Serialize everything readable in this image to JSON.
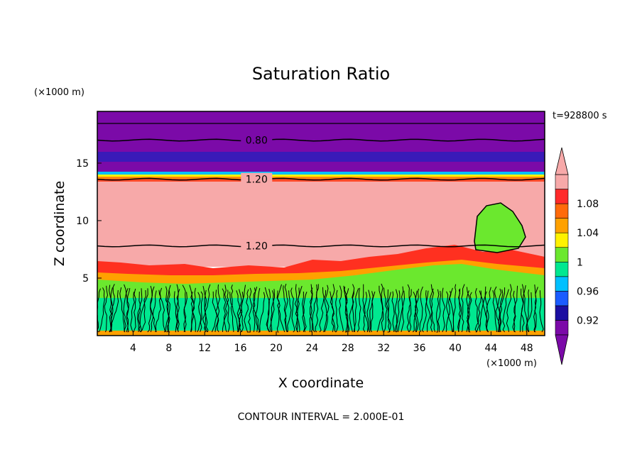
{
  "chart_data": {
    "type": "heatmap",
    "title": "Saturation Ratio",
    "xlabel": "X coordinate",
    "ylabel": "Z coordinate",
    "x_unit": "(×1000 m)",
    "y_unit": "(×1000 m)",
    "time_label": "t=928800 s",
    "footer": "CONTOUR INTERVAL = 2.000E-01",
    "xlim": [
      0,
      50
    ],
    "ylim": [
      0,
      19.5
    ],
    "x_ticks": [
      4,
      8,
      12,
      16,
      20,
      24,
      28,
      32,
      36,
      40,
      44,
      48
    ],
    "y_ticks": [
      5,
      10,
      15
    ],
    "contour_labels": [
      {
        "text": "0.80",
        "x": 17.8,
        "z": 17.0
      },
      {
        "text": "1.20",
        "x": 17.8,
        "z": 13.6
      },
      {
        "text": "1.20",
        "x": 17.8,
        "z": 7.8
      }
    ],
    "colorbar": {
      "tick_labels": [
        "1.08",
        "1.04",
        "1",
        "0.96",
        "0.92"
      ],
      "colors": [
        "#7b0aa8",
        "#1b0ea1",
        "#1b5cff",
        "#00c0ff",
        "#00e890",
        "#6be82e",
        "#fff200",
        "#ffa100",
        "#ff6a0a",
        "#ff2a2a",
        "#f7a9a9"
      ]
    }
  }
}
